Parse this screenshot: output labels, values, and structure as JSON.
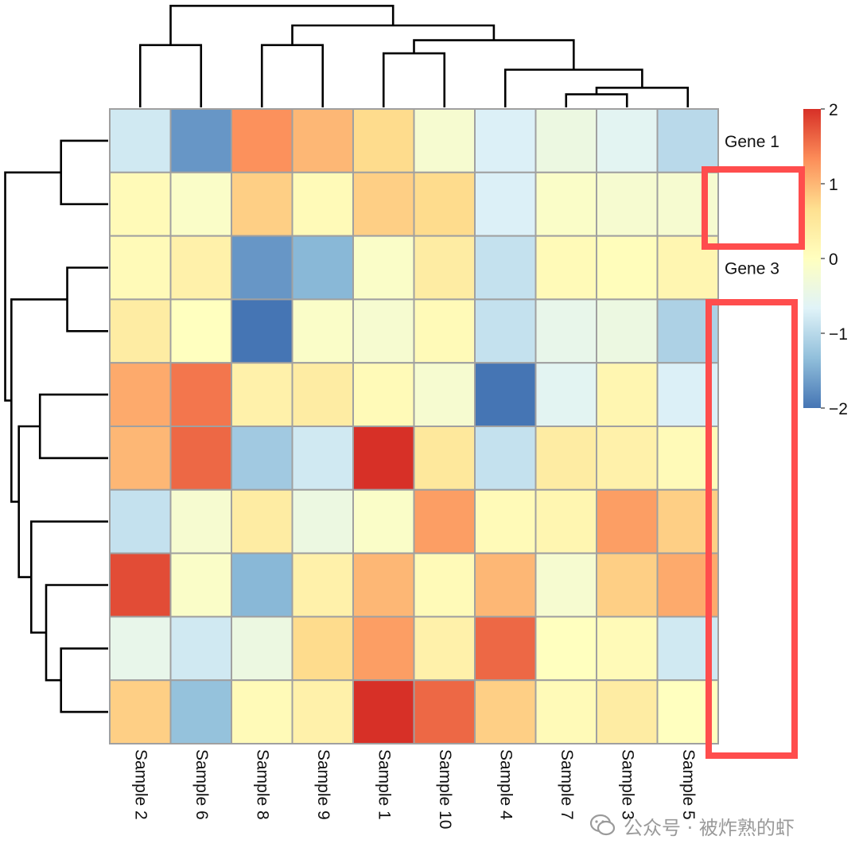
{
  "chart_data": {
    "type": "heatmap",
    "columns": [
      "Sample 2",
      "Sample 6",
      "Sample 8",
      "Sample 9",
      "Sample 1",
      "Sample 10",
      "Sample 4",
      "Sample 7",
      "Sample 3",
      "Sample 5"
    ],
    "row_labels": [
      "Gene 1",
      "",
      "Gene 3",
      "",
      "",
      "",
      "",
      "",
      "",
      ""
    ],
    "values": [
      [
        -0.8,
        -1.7,
        1.3,
        1.0,
        0.7,
        -0.2,
        -0.7,
        -0.4,
        -0.6,
        -1.0
      ],
      [
        0.1,
        -0.1,
        0.8,
        0.1,
        0.8,
        0.7,
        -0.7,
        -0.1,
        -0.2,
        -0.2
      ],
      [
        0.1,
        0.3,
        -1.7,
        -1.4,
        -0.1,
        0.4,
        -0.9,
        0.1,
        0.05,
        0.2
      ],
      [
        0.4,
        0.0,
        -2.0,
        -0.1,
        -0.2,
        0.1,
        -0.9,
        -0.5,
        -0.4,
        -1.1
      ],
      [
        1.1,
        1.5,
        0.3,
        0.4,
        0.1,
        -0.2,
        -2.0,
        -0.6,
        0.2,
        -0.7
      ],
      [
        1.0,
        1.6,
        -1.2,
        -0.8,
        2.0,
        0.5,
        -0.9,
        0.4,
        0.3,
        0.1
      ],
      [
        -0.9,
        -0.2,
        0.4,
        -0.4,
        -0.1,
        1.2,
        0.1,
        0.2,
        1.2,
        0.8
      ],
      [
        1.8,
        -0.1,
        -1.4,
        0.3,
        1.0,
        0.1,
        1.0,
        -0.2,
        0.8,
        1.1
      ],
      [
        -0.5,
        -0.8,
        -0.4,
        0.7,
        1.2,
        0.3,
        1.6,
        0.0,
        0.1,
        -0.8
      ],
      [
        0.8,
        -1.3,
        0.1,
        0.3,
        2.0,
        1.6,
        0.8,
        0.1,
        0.4,
        0.0
      ]
    ],
    "scale": {
      "min": -2,
      "max": 2,
      "ticks": [
        "2",
        "1",
        "0",
        "−1",
        "−2"
      ],
      "tick_values": [
        2,
        1,
        0,
        -1,
        -2
      ]
    },
    "colormap": [
      "#4575b4",
      "#91bfdb",
      "#e0f3f8",
      "#ffffbf",
      "#fee090",
      "#fc8d59",
      "#d73027"
    ],
    "grid_color": "#a0a0a0",
    "dendrogram_color": "#000000",
    "column_dendrogram": [
      [
        7,
        8,
        0.16
      ],
      [
        9,
        10,
        0.24
      ],
      [
        6,
        11,
        0.46
      ],
      [
        4,
        5,
        0.66
      ],
      [
        13,
        12,
        0.82
      ],
      [
        2,
        3,
        0.76
      ],
      [
        15,
        14,
        1.0
      ],
      [
        0,
        1,
        0.76
      ],
      [
        17,
        16,
        1.24
      ]
    ],
    "row_dendrogram": [
      [
        0,
        1,
        0.76
      ],
      [
        2,
        3,
        0.66
      ],
      [
        4,
        5,
        1.1
      ],
      [
        8,
        9,
        0.76
      ],
      [
        7,
        13,
        1.0
      ],
      [
        6,
        14,
        1.24
      ],
      [
        12,
        15,
        1.44
      ],
      [
        11,
        16,
        1.56
      ],
      [
        10,
        17,
        1.66
      ]
    ],
    "highlight_color": "#ff4d4d"
  },
  "watermark": {
    "text": "公众号 · 被炸熟的虾",
    "icon": "wechat-icon"
  }
}
